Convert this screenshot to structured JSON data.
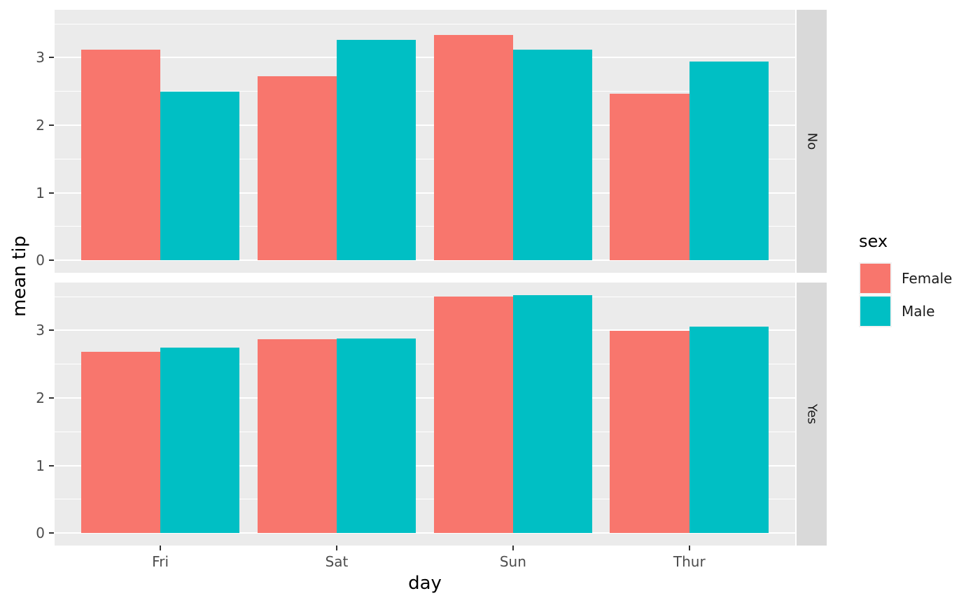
{
  "figure": {
    "xlabel": "day",
    "ylabel": "mean tip",
    "x_tick_labels": [
      "Fri",
      "Sat",
      "Sun",
      "Thur"
    ],
    "y_tick_labels": [
      "0",
      "1",
      "2",
      "3"
    ],
    "facets": [
      {
        "label": "No"
      },
      {
        "label": "Yes"
      }
    ],
    "legend": {
      "title": "sex",
      "entries": [
        {
          "label": "Female",
          "color": "#F8766D"
        },
        {
          "label": "Male",
          "color": "#00BFC4"
        }
      ]
    },
    "colors": {
      "panel_background": "#EBEBEB",
      "strip_background": "#D9D9D9",
      "gridline": "#FFFFFF",
      "axis_text": "#4D4D4D",
      "strip_text": "#1A1A1A",
      "tick_mark": "#333333",
      "female": "#F8766D",
      "male": "#00BFC4"
    }
  },
  "chart_data": {
    "type": "bar",
    "title": "",
    "xlabel": "day",
    "ylabel": "mean tip",
    "categories": [
      "Fri",
      "Sat",
      "Sun",
      "Thur"
    ],
    "facet": {
      "variable_values": [
        "No",
        "Yes"
      ],
      "strip_position": "right"
    },
    "y_axis": {
      "ticks": [
        0,
        1,
        2,
        3
      ],
      "minor_ticks": [
        0.5,
        1.5,
        2.5,
        3.5
      ],
      "display_range": [
        -0.19,
        3.71
      ],
      "grid": true
    },
    "legend_position": "right",
    "series_by_facet": [
      {
        "facet": "No",
        "series": [
          {
            "name": "Female",
            "color": "#F8766D",
            "values": [
              3.12,
              2.72,
              3.33,
              2.46
            ]
          },
          {
            "name": "Male",
            "color": "#00BFC4",
            "values": [
              2.5,
              3.26,
              3.12,
              2.94
            ]
          }
        ]
      },
      {
        "facet": "Yes",
        "series": [
          {
            "name": "Female",
            "color": "#F8766D",
            "values": [
              2.68,
              2.87,
              3.5,
              2.99
            ]
          },
          {
            "name": "Male",
            "color": "#00BFC4",
            "values": [
              2.74,
              2.88,
              3.52,
              3.06
            ]
          }
        ]
      }
    ]
  }
}
